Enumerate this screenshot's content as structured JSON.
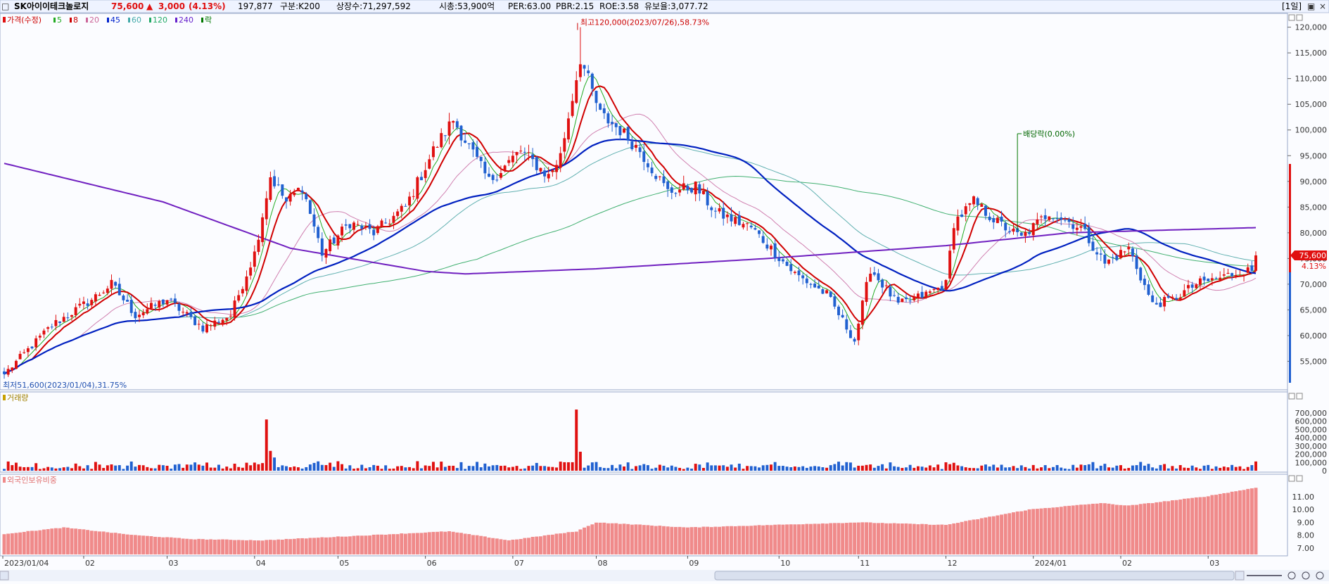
{
  "header": {
    "checkbox": "□",
    "stock_name": "SK아이이테크놀로지",
    "price": "75,600",
    "change_symbol": "▲",
    "change": "3,000",
    "change_pct": "(4.13%)",
    "volume": "197,877",
    "segment": "구분:K200",
    "listed_shares": "상장수:71,297,592",
    "market_cap": "시총:53,900억",
    "per": "PER:63.00",
    "pbr": "PBR:2.15",
    "roe": "ROE:3.58",
    "float_rate": "유보율:3,077.72",
    "period_label": "[1일]",
    "window_buttons": [
      "▣",
      "×"
    ]
  },
  "legend": {
    "price_label": "가격(수정)",
    "ma_items": [
      {
        "label": "5",
        "color": "#22aa22"
      },
      {
        "label": "8",
        "color": "#cc0000"
      },
      {
        "label": "20",
        "color": "#cc6699"
      },
      {
        "label": "45",
        "color": "#0022cc"
      },
      {
        "label": "60",
        "color": "#44aaaa"
      },
      {
        "label": "120",
        "color": "#22aa66"
      },
      {
        "label": "240",
        "color": "#6622cc"
      },
      {
        "label": "락",
        "color": "#007700"
      }
    ],
    "volume_label": "거래량",
    "foreign_label": "외국인보유비중"
  },
  "annotations": {
    "high": "최고120,000(2023/07/26),58.73%",
    "low": "최저51,600(2023/01/04),31.75%",
    "dividend": "배당락(0.00%)",
    "current_price_tag": "75,600",
    "current_pct_tag": "4.13%"
  },
  "colors": {
    "up": "#e01010",
    "down": "#2060d0",
    "background": "#fbfcff",
    "foreign_bar": "#f08a8a"
  },
  "axes": {
    "price_ticks": [
      "120,000",
      "115,000",
      "110,000",
      "105,000",
      "100,000",
      "95,000",
      "90,000",
      "85,000",
      "80,000",
      "75,000",
      "70,000",
      "65,000",
      "60,000",
      "55,000"
    ],
    "volume_ticks": [
      "700,000",
      "600,000",
      "500,000",
      "400,000",
      "300,000",
      "200,000",
      "100,000",
      "0"
    ],
    "foreign_ticks": [
      "11.00",
      "10.00",
      "9.00",
      "8.00",
      "7.00"
    ],
    "x_labels": [
      "2023/01/04",
      "02",
      "03",
      "04",
      "05",
      "06",
      "07",
      "08",
      "09",
      "10",
      "11",
      "12",
      "2024/01",
      "02",
      "03"
    ]
  },
  "chart_data": [
    {
      "type": "candlestick",
      "title": "가격(수정)",
      "ylim": [
        50000,
        122000
      ],
      "price_anchors": [
        {
          "date": "2023-01-04",
          "close": 52500
        },
        {
          "date": "2023-01-20",
          "close": 62000
        },
        {
          "date": "2023-02-03",
          "close": 67000
        },
        {
          "date": "2023-02-10",
          "close": 70000
        },
        {
          "date": "2023-02-20",
          "close": 64000
        },
        {
          "date": "2023-03-02",
          "close": 67000
        },
        {
          "date": "2023-03-15",
          "close": 61500
        },
        {
          "date": "2023-03-24",
          "close": 64000
        },
        {
          "date": "2023-04-03",
          "close": 76000
        },
        {
          "date": "2023-04-07",
          "close": 91000
        },
        {
          "date": "2023-04-13",
          "close": 86000
        },
        {
          "date": "2023-04-19",
          "close": 89000
        },
        {
          "date": "2023-04-26",
          "close": 76000
        },
        {
          "date": "2023-05-05",
          "close": 82000
        },
        {
          "date": "2023-05-15",
          "close": 80000
        },
        {
          "date": "2023-05-25",
          "close": 85000
        },
        {
          "date": "2023-06-05",
          "close": 96000
        },
        {
          "date": "2023-06-12",
          "close": 102000
        },
        {
          "date": "2023-06-23",
          "close": 90000
        },
        {
          "date": "2023-07-05",
          "close": 96000
        },
        {
          "date": "2023-07-14",
          "close": 91000
        },
        {
          "date": "2023-07-19",
          "close": 95000
        },
        {
          "date": "2023-07-26",
          "close": 114000
        },
        {
          "date": "2023-08-02",
          "close": 103000
        },
        {
          "date": "2023-08-09",
          "close": 100000
        },
        {
          "date": "2023-08-16",
          "close": 96000
        },
        {
          "date": "2023-08-25",
          "close": 88000
        },
        {
          "date": "2023-09-05",
          "close": 89000
        },
        {
          "date": "2023-09-12",
          "close": 84000
        },
        {
          "date": "2023-09-25",
          "close": 81000
        },
        {
          "date": "2023-10-10",
          "close": 72000
        },
        {
          "date": "2023-10-20",
          "close": 68000
        },
        {
          "date": "2023-10-31",
          "close": 59000
        },
        {
          "date": "2023-11-06",
          "close": 73000
        },
        {
          "date": "2023-11-15",
          "close": 66000
        },
        {
          "date": "2023-11-25",
          "close": 68000
        },
        {
          "date": "2023-12-01",
          "close": 70000
        },
        {
          "date": "2023-12-05",
          "close": 82000
        },
        {
          "date": "2023-12-12",
          "close": 86000
        },
        {
          "date": "2023-12-20",
          "close": 82000
        },
        {
          "date": "2023-12-28",
          "close": 79000
        },
        {
          "date": "2024-01-08",
          "close": 84000
        },
        {
          "date": "2024-01-18",
          "close": 81000
        },
        {
          "date": "2024-01-26",
          "close": 74000
        },
        {
          "date": "2024-02-05",
          "close": 77000
        },
        {
          "date": "2024-02-13",
          "close": 66000
        },
        {
          "date": "2024-02-20",
          "close": 67000
        },
        {
          "date": "2024-02-28",
          "close": 70000
        },
        {
          "date": "2024-03-06",
          "close": 71000
        },
        {
          "date": "2024-03-14",
          "close": 72500
        },
        {
          "date": "2024-03-19",
          "close": 72600
        },
        {
          "date": "2024-03-20",
          "close": 75600
        }
      ],
      "high": {
        "date": "2023-07-26",
        "value": 120000
      },
      "low": {
        "date": "2023-01-04",
        "value": 51600
      },
      "moving_averages": [
        5,
        8,
        20,
        45,
        60,
        120,
        240
      ],
      "ma240_anchors": [
        {
          "date": "2023-01-04",
          "value": 93500
        },
        {
          "date": "2023-03-01",
          "value": 86000
        },
        {
          "date": "2023-04-15",
          "value": 77000
        },
        {
          "date": "2023-06-01",
          "value": 72500
        },
        {
          "date": "2023-06-15",
          "value": 72000
        },
        {
          "date": "2023-08-01",
          "value": 73000
        },
        {
          "date": "2023-10-01",
          "value": 75000
        },
        {
          "date": "2023-12-01",
          "value": 77500
        },
        {
          "date": "2024-01-15",
          "value": 80000
        },
        {
          "date": "2024-03-20",
          "value": 81000
        }
      ]
    },
    {
      "type": "bar",
      "title": "거래량",
      "ylim": [
        0,
        800000
      ],
      "spikes": [
        {
          "date": "2023-04-06",
          "value": 620000
        },
        {
          "date": "2023-04-07",
          "value": 240000
        },
        {
          "date": "2023-07-25",
          "value": 740000
        },
        {
          "date": "2023-07-26",
          "value": 230000
        },
        {
          "date": "2023-06-07",
          "value": 110000
        },
        {
          "date": "2023-04-10",
          "value": 160000
        }
      ]
    },
    {
      "type": "bar",
      "title": "외국인보유비중",
      "ylim": [
        6.5,
        12.2
      ],
      "anchors": [
        {
          "date": "2023-01-04",
          "value": 8.1
        },
        {
          "date": "2023-01-25",
          "value": 8.6
        },
        {
          "date": "2023-02-20",
          "value": 8.0
        },
        {
          "date": "2023-03-10",
          "value": 7.7
        },
        {
          "date": "2023-04-05",
          "value": 7.6
        },
        {
          "date": "2023-06-10",
          "value": 8.3
        },
        {
          "date": "2023-07-01",
          "value": 7.6
        },
        {
          "date": "2023-07-25",
          "value": 8.3
        },
        {
          "date": "2023-08-01",
          "value": 9.0
        },
        {
          "date": "2023-09-01",
          "value": 8.6
        },
        {
          "date": "2023-11-01",
          "value": 9.0
        },
        {
          "date": "2023-12-01",
          "value": 8.8
        },
        {
          "date": "2024-01-01",
          "value": 10.0
        },
        {
          "date": "2024-01-25",
          "value": 10.5
        },
        {
          "date": "2024-02-05",
          "value": 10.3
        },
        {
          "date": "2024-03-01",
          "value": 11.0
        },
        {
          "date": "2024-03-20",
          "value": 11.7
        }
      ]
    }
  ]
}
